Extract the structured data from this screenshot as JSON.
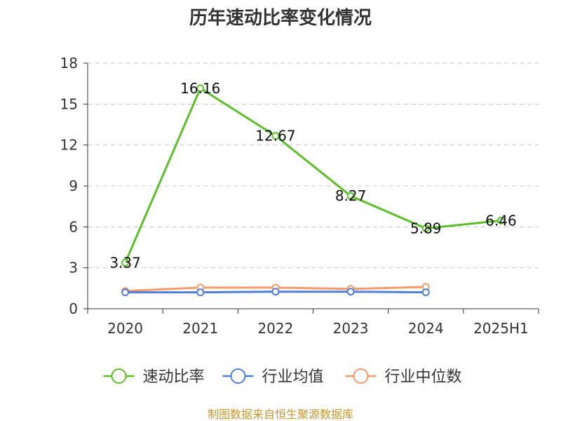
{
  "chart_data": {
    "type": "line",
    "title": "历年速动比率变化情况",
    "categories": [
      "2020",
      "2021",
      "2022",
      "2023",
      "2024",
      "2025H1"
    ],
    "ylim": [
      0,
      18
    ],
    "yticks": [
      "0",
      "3",
      "6",
      "9",
      "12",
      "15",
      "18"
    ],
    "grid": true,
    "legend_position": "bottom",
    "series": [
      {
        "name": "速动比率",
        "color": "#5cbf2a",
        "values": [
          3.37,
          16.16,
          12.67,
          8.27,
          5.89,
          6.46
        ],
        "labels": [
          "3.37",
          "16.16",
          "12.67",
          "8.27",
          "5.89",
          "6.46"
        ]
      },
      {
        "name": "行业均值",
        "color": "#4f7fd8",
        "values": [
          1.2,
          1.2,
          1.25,
          1.25,
          1.2,
          null
        ]
      },
      {
        "name": "行业中位数",
        "color": "#f59a6b",
        "values": [
          1.3,
          1.55,
          1.55,
          1.45,
          1.6,
          null
        ]
      }
    ]
  },
  "source_note": "制图数据来自恒生聚源数据库"
}
